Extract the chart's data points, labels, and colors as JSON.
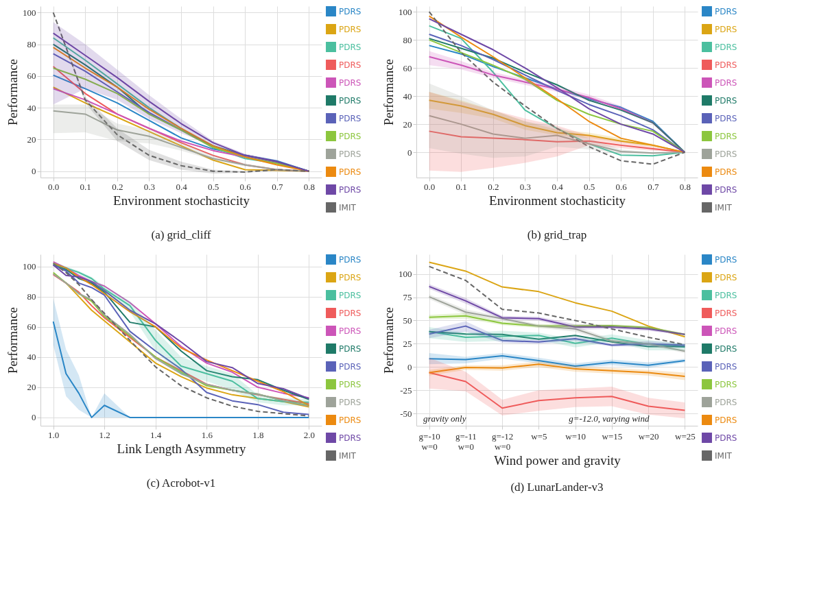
{
  "chart_data": [
    {
      "type": "line",
      "title": "(a) grid_cliff",
      "xlabel": "Environment stochasticity",
      "ylabel": "Performance",
      "grid": true,
      "legend": "right",
      "x": [
        0,
        0.1,
        0.2,
        0.3,
        0.4,
        0.5,
        0.6,
        0.7,
        0.8
      ],
      "xlim": [
        -0.04,
        0.84
      ],
      "ylim": [
        -4,
        104
      ],
      "xticks": [
        {
          "value": 0,
          "label": "0.0"
        },
        {
          "value": 0.1,
          "label": "0.1"
        },
        {
          "value": 0.2,
          "label": "0.2"
        },
        {
          "value": 0.3,
          "label": "0.3"
        },
        {
          "value": 0.4,
          "label": "0.4"
        },
        {
          "value": 0.5,
          "label": "0.5"
        },
        {
          "value": 0.6,
          "label": "0.6"
        },
        {
          "value": 0.7,
          "label": "0.7"
        },
        {
          "value": 0.8,
          "label": "0.8"
        }
      ],
      "yticks": [
        0,
        20,
        40,
        60,
        80,
        100
      ],
      "series": [
        {
          "name": "PDRS",
          "color": "#2a86c6",
          "values": [
            60.5,
            52,
            43,
            32,
            21,
            14,
            10,
            6.5,
            0
          ]
        },
        {
          "name": "PDRS",
          "color": "#dba514",
          "values": [
            53,
            43,
            34,
            25,
            16,
            7,
            1,
            0.5,
            0
          ]
        },
        {
          "name": "PDRS",
          "color": "#4bbf9f",
          "values": [
            84,
            70,
            55,
            40,
            27,
            15,
            8,
            5,
            0
          ]
        },
        {
          "name": "PDRS",
          "color": "#ef5b5b",
          "values": [
            66,
            49,
            36,
            27,
            18,
            10,
            4,
            1,
            0
          ]
        },
        {
          "name": "PDRS",
          "color": "#cc55b8",
          "values": [
            52,
            45,
            36,
            27,
            19,
            13,
            9,
            5,
            0
          ]
        },
        {
          "name": "PDRS",
          "color": "#1f7a68",
          "values": [
            80,
            67,
            53,
            36,
            26,
            16,
            10,
            6,
            0
          ]
        },
        {
          "name": "PDRS",
          "color": "#5a62b8",
          "values": [
            74,
            63,
            50,
            37,
            26,
            15,
            10,
            6,
            0
          ]
        },
        {
          "name": "PDRS",
          "color": "#8cc63e",
          "values": [
            65,
            58,
            49,
            36,
            26,
            15,
            9,
            5,
            0
          ]
        },
        {
          "name": "PDRS",
          "color": "#9ea39a",
          "values": [
            38,
            36,
            26,
            22,
            15,
            8,
            4,
            1,
            0
          ],
          "lower": [
            24,
            24.5,
            19,
            17.5,
            13,
            7,
            3,
            0.5,
            0
          ],
          "upper": [
            42,
            42,
            30,
            26,
            18,
            10,
            5,
            1.5,
            0
          ]
        },
        {
          "name": "PDRS",
          "color": "#ec8a10",
          "values": [
            78,
            65,
            53,
            39,
            27,
            16,
            9,
            4,
            0
          ]
        },
        {
          "name": "PDRS",
          "color": "#6e48a6",
          "values": [
            87,
            73,
            59,
            44,
            30,
            18,
            10,
            6,
            0
          ],
          "lower": [
            42,
            52,
            45,
            33,
            24,
            16,
            9,
            5,
            0
          ],
          "upper": [
            94,
            80,
            64,
            48,
            33,
            19,
            11,
            7,
            0
          ]
        },
        {
          "name": "IMIT",
          "color": "#666666",
          "line_style": "dashed",
          "values": [
            100,
            45,
            23,
            10,
            3.5,
            0,
            -0.5,
            1,
            0
          ],
          "lower": [
            100,
            43,
            19,
            7,
            1,
            -1.5,
            -1,
            0.5,
            0
          ],
          "upper": [
            100,
            47,
            27,
            13.5,
            6,
            1,
            0,
            1.5,
            0
          ]
        }
      ]
    },
    {
      "type": "line",
      "title": "(b) grid_trap",
      "xlabel": "Environment stochasticity",
      "ylabel": "Performance",
      "grid": true,
      "legend": "right",
      "x": [
        0,
        0.1,
        0.2,
        0.3,
        0.4,
        0.5,
        0.6,
        0.7,
        0.8
      ],
      "xlim": [
        -0.04,
        0.84
      ],
      "ylim": [
        -18,
        104
      ],
      "xticks": [
        {
          "value": 0,
          "label": "0.0"
        },
        {
          "value": 0.1,
          "label": "0.1"
        },
        {
          "value": 0.2,
          "label": "0.2"
        },
        {
          "value": 0.3,
          "label": "0.3"
        },
        {
          "value": 0.4,
          "label": "0.4"
        },
        {
          "value": 0.5,
          "label": "0.5"
        },
        {
          "value": 0.6,
          "label": "0.6"
        },
        {
          "value": 0.7,
          "label": "0.7"
        },
        {
          "value": 0.8,
          "label": "0.8"
        }
      ],
      "yticks": [
        0,
        20,
        40,
        60,
        80,
        100
      ],
      "series": [
        {
          "name": "PDRS",
          "color": "#2a86c6",
          "values": [
            76,
            70,
            61,
            53,
            45,
            38,
            32,
            22,
            0
          ]
        },
        {
          "name": "PDRS",
          "color": "#dba514",
          "values": [
            37,
            33,
            27,
            19,
            14,
            12,
            8,
            5,
            0
          ],
          "lower": [
            31,
            28,
            24,
            16,
            12,
            10,
            7,
            4,
            0
          ],
          "upper": [
            43,
            37,
            30,
            22,
            16,
            14,
            10,
            6,
            0
          ]
        },
        {
          "name": "PDRS",
          "color": "#4bbf9f",
          "values": [
            90,
            81,
            57,
            30,
            17,
            6,
            -2,
            -2.5,
            0
          ]
        },
        {
          "name": "PDRS",
          "color": "#ef5b5b",
          "values": [
            15,
            11,
            10,
            9,
            7.5,
            8,
            5,
            2.5,
            0
          ],
          "lower": [
            -13,
            -14,
            -11,
            -7.5,
            -3,
            5,
            3,
            1,
            0
          ],
          "upper": [
            43,
            36,
            30,
            24,
            19,
            12,
            8,
            4,
            0
          ]
        },
        {
          "name": "PDRS",
          "color": "#cc55b8",
          "values": [
            68,
            62,
            55,
            50,
            45,
            39,
            31,
            21,
            0
          ],
          "lower": [
            62,
            59,
            53,
            48,
            43,
            37,
            30,
            20,
            0
          ],
          "upper": [
            72,
            65,
            57,
            52,
            47,
            41,
            33,
            22,
            0
          ]
        },
        {
          "name": "PDRS",
          "color": "#1f7a68",
          "values": [
            81,
            74,
            67,
            57,
            48,
            37,
            30,
            21,
            0
          ]
        },
        {
          "name": "PDRS",
          "color": "#5a62b8",
          "values": [
            84,
            76,
            66,
            55,
            44,
            34,
            26,
            16,
            0
          ]
        },
        {
          "name": "PDRS",
          "color": "#8cc63e",
          "values": [
            80,
            71,
            62,
            52,
            37,
            27,
            20,
            15,
            0
          ]
        },
        {
          "name": "PDRS",
          "color": "#9ea39a",
          "values": [
            26,
            20,
            13,
            10,
            12,
            6,
            0.5,
            -0.5,
            0
          ],
          "lower": [
            3,
            -1,
            -4,
            -3,
            4,
            2,
            -1,
            -1,
            0
          ],
          "upper": [
            49,
            40,
            30,
            22,
            18,
            10,
            2,
            0,
            0
          ]
        },
        {
          "name": "PDRS",
          "color": "#ec8a10",
          "values": [
            97,
            82,
            68,
            53,
            38,
            22,
            10,
            5,
            0
          ]
        },
        {
          "name": "PDRS",
          "color": "#6e48a6",
          "values": [
            95,
            84,
            73,
            60,
            46,
            31,
            20,
            13,
            0
          ]
        },
        {
          "name": "IMIT",
          "color": "#666666",
          "line_style": "dashed",
          "values": [
            100,
            71,
            50,
            33,
            17,
            4,
            -6,
            -8.5,
            0
          ]
        }
      ]
    },
    {
      "type": "line",
      "title": "(c) Acrobot-v1",
      "xlabel": "Link Length Asymmetry",
      "ylabel": "Performance",
      "grid": true,
      "legend": "right",
      "x": [
        1.0,
        1.05,
        1.1,
        1.15,
        1.2,
        1.3,
        1.4,
        1.5,
        1.6,
        1.7,
        1.8,
        1.9,
        2.0
      ],
      "xlim": [
        0.95,
        2.05
      ],
      "ylim": [
        -5.5,
        108
      ],
      "xticks": [
        {
          "value": 1,
          "label": "1.0"
        },
        {
          "value": 1.2,
          "label": "1.2"
        },
        {
          "value": 1.4,
          "label": "1.4"
        },
        {
          "value": 1.6,
          "label": "1.6"
        },
        {
          "value": 1.8,
          "label": "1.8"
        },
        {
          "value": 2,
          "label": "2.0"
        }
      ],
      "yticks": [
        0,
        20,
        40,
        60,
        80,
        100
      ],
      "series": [
        {
          "name": "PDRS",
          "color": "#2a86c6",
          "values": [
            63.5,
            29,
            16,
            0,
            8,
            0,
            0,
            0,
            0,
            0,
            0,
            0,
            0
          ],
          "lower": [
            48,
            14,
            5,
            0,
            0,
            0,
            0,
            0,
            0,
            0,
            0,
            0,
            0
          ],
          "upper": [
            79,
            45,
            28,
            0,
            16,
            0,
            0,
            0,
            0,
            0,
            0,
            0,
            0
          ]
        },
        {
          "name": "PDRS",
          "color": "#dba514",
          "values": [
            95,
            89,
            80,
            71,
            64,
            50,
            36,
            27,
            19.5,
            15,
            12.5,
            10.5,
            7
          ]
        },
        {
          "name": "PDRS",
          "color": "#4bbf9f",
          "values": [
            102,
            99,
            96,
            92,
            85,
            74,
            51,
            34,
            29,
            24,
            12.5,
            10.5,
            10
          ],
          "lower": [
            101,
            98,
            95,
            90,
            82,
            70,
            44,
            28,
            24,
            18,
            10,
            8,
            8
          ],
          "upper": [
            103,
            100,
            97,
            93,
            87,
            77,
            58,
            40,
            34,
            29,
            15,
            13,
            12
          ]
        },
        {
          "name": "PDRS",
          "color": "#ef5b5b",
          "values": [
            94.5,
            89,
            83,
            74,
            66,
            53,
            40,
            31,
            22,
            18,
            15,
            12,
            9
          ]
        },
        {
          "name": "PDRS",
          "color": "#cc55b8",
          "values": [
            103,
            99,
            94,
            90,
            87,
            76,
            62,
            47,
            36,
            30,
            20,
            16,
            13
          ]
        },
        {
          "name": "PDRS",
          "color": "#1f7a68",
          "values": [
            101,
            98,
            92,
            89,
            83,
            63,
            60,
            44,
            31,
            27,
            25,
            18,
            12
          ]
        },
        {
          "name": "PDRS",
          "color": "#5a62b8",
          "values": [
            101,
            97,
            89,
            86,
            81,
            57,
            44,
            32,
            16.5,
            11,
            8.5,
            3.5,
            2
          ]
        },
        {
          "name": "PDRS",
          "color": "#8cc63e",
          "values": [
            96,
            89,
            82,
            77,
            67,
            54,
            40,
            30,
            21,
            18,
            15.5,
            11,
            8
          ]
        },
        {
          "name": "PDRS",
          "color": "#9ea39a",
          "values": [
            95,
            89,
            82,
            78,
            68,
            55,
            39,
            29,
            22,
            18,
            15.5,
            11,
            7.5
          ]
        },
        {
          "name": "PDRS",
          "color": "#ec8a10",
          "values": [
            102,
            99,
            93,
            88,
            82,
            70,
            60,
            46,
            38,
            31,
            24,
            17,
            8
          ]
        },
        {
          "name": "PDRS",
          "color": "#6e48a6",
          "values": [
            101,
            94,
            93,
            90,
            84,
            71,
            62,
            50,
            37,
            33,
            22.5,
            19,
            12.5
          ]
        },
        {
          "name": "IMIT",
          "color": "#666666",
          "line_style": "dashed",
          "values": [
            102,
            96,
            88,
            78,
            69,
            51,
            33.5,
            21,
            13,
            7.5,
            4,
            2.5,
            1
          ]
        }
      ]
    },
    {
      "type": "line",
      "title": "(d) LunarLander-v3",
      "xlabel": "Wind power and gravity",
      "ylabel": "Performance",
      "grid": true,
      "legend": "right",
      "categories": [
        "g=-10\nw=0",
        "g=-11\nw=0",
        "g=-12\nw=0",
        "w=5",
        "w=10",
        "w=15",
        "w=20",
        "w=25"
      ],
      "ylim": [
        -63,
        121
      ],
      "yticks": [
        -50,
        -25,
        0,
        25,
        50,
        75,
        100
      ],
      "annotations": [
        "gravity only",
        "g=-12.0, varying wind"
      ],
      "series": [
        {
          "name": "PDRS",
          "color": "#2a86c6",
          "values": [
            9,
            8,
            12,
            7,
            1,
            5,
            2,
            7
          ],
          "lower": [
            3,
            4,
            9,
            4,
            -1,
            2,
            -1,
            5
          ],
          "upper": [
            15,
            11,
            15,
            10,
            4,
            8,
            5,
            9
          ]
        },
        {
          "name": "PDRS",
          "color": "#dba514",
          "values": [
            112.5,
            103,
            86,
            81,
            69,
            60,
            44,
            32.5
          ]
        },
        {
          "name": "PDRS",
          "color": "#4bbf9f",
          "values": [
            38,
            32,
            33,
            34,
            25.5,
            31,
            24.5,
            21.5
          ],
          "lower": [
            31,
            27,
            28,
            29,
            21,
            27,
            18,
            18
          ],
          "upper": [
            43,
            37,
            39,
            37,
            30,
            35,
            29,
            25
          ]
        },
        {
          "name": "PDRS",
          "color": "#ef5b5b",
          "values": [
            -6,
            -15.5,
            -44,
            -36,
            -33,
            -31.5,
            -42,
            -46.5
          ],
          "lower": [
            -23,
            -26,
            -52,
            -47,
            -43,
            -42,
            -51,
            -55
          ],
          "upper": [
            10,
            -5,
            -35,
            -25,
            -23,
            -21,
            -33,
            -38
          ]
        },
        {
          "name": "PDRS",
          "color": "#cc55b8",
          "values": [
            null,
            null,
            null,
            null,
            null,
            null,
            null,
            null
          ]
        },
        {
          "name": "PDRS",
          "color": "#1f7a68",
          "values": [
            38,
            35.5,
            35,
            30,
            34,
            27,
            22,
            22
          ]
        },
        {
          "name": "PDRS",
          "color": "#5a62b8",
          "values": [
            35.5,
            44,
            28.5,
            27,
            30.5,
            23.5,
            25,
            23.5
          ],
          "lower": [
            31,
            38,
            26,
            25,
            28,
            22,
            22,
            21
          ],
          "upper": [
            40,
            49,
            31,
            29,
            33,
            25,
            28,
            25
          ]
        },
        {
          "name": "PDRS",
          "color": "#8cc63e",
          "values": [
            53.5,
            55,
            47,
            44,
            44,
            44.5,
            42.5,
            35
          ],
          "lower": [
            51,
            52,
            45,
            42,
            42,
            43,
            41,
            34
          ],
          "upper": [
            56,
            58,
            49,
            46,
            46,
            46,
            44,
            36
          ]
        },
        {
          "name": "PDRS",
          "color": "#9ea39a",
          "values": [
            75.5,
            59,
            52,
            44,
            41,
            28,
            25,
            17
          ],
          "lower": [
            73,
            56,
            50,
            42,
            38,
            26,
            23,
            15
          ],
          "upper": [
            78,
            62,
            54,
            46,
            44,
            30,
            27,
            19
          ]
        },
        {
          "name": "PDRS",
          "color": "#ec8a10",
          "values": [
            -6,
            -0.5,
            -1,
            3,
            -2,
            -4,
            -6,
            -10
          ],
          "lower": [
            -9,
            -3,
            -4,
            0,
            -5,
            -7,
            -9,
            -14
          ],
          "upper": [
            -3,
            2,
            2,
            6,
            1,
            -1,
            -3,
            -6
          ]
        },
        {
          "name": "PDRS",
          "color": "#6e48a6",
          "values": [
            86.5,
            71,
            53,
            52,
            43,
            43,
            41,
            35
          ],
          "lower": [
            84,
            68,
            51,
            50,
            40,
            41,
            39,
            34
          ],
          "upper": [
            89,
            74,
            55,
            54,
            46,
            45,
            43,
            36
          ]
        },
        {
          "name": "IMIT",
          "color": "#666666",
          "line_style": "dashed",
          "values": [
            108,
            93,
            62,
            58,
            50,
            41,
            32,
            24
          ]
        }
      ]
    }
  ]
}
